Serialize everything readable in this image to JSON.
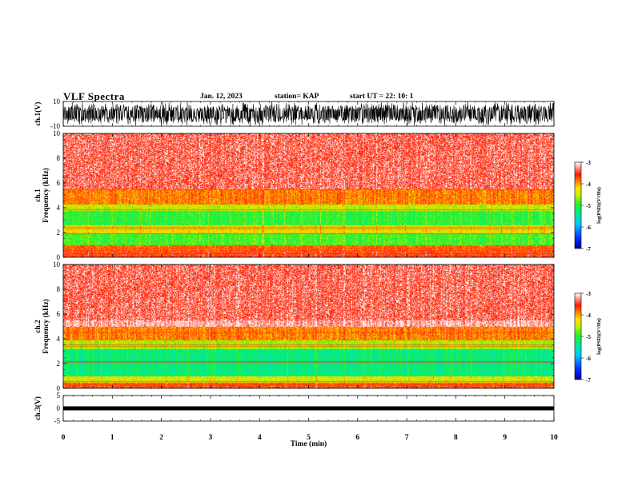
{
  "header": {
    "title": "VLF Spectra",
    "date": "Jan. 12, 2023",
    "station": "station= KAP",
    "start": "start  UT  =   22: 10: 1"
  },
  "colors": {
    "spectrogram_scale": [
      "#0000a0",
      "#0030ff",
      "#00b0ff",
      "#00e8a0",
      "#20f020",
      "#a0f000",
      "#f8f000",
      "#ff9000",
      "#ff1a00",
      "#ffffff"
    ],
    "trace": "#000000"
  },
  "chart_data": [
    {
      "type": "line",
      "panel": "ch1-waveform",
      "ylabel": "ch.1(V)",
      "ylim": [
        -10,
        10
      ],
      "yticks": [
        "10",
        "-10"
      ],
      "xlim": [
        0,
        10
      ],
      "description_series": "dense noise trace filling most of the range"
    },
    {
      "type": "heatmap",
      "panel": "ch1-spectrogram",
      "ylabel": "ch.1 Frequency (kHz)",
      "ylim": [
        0,
        10
      ],
      "yticks": [
        "0",
        "2",
        "4",
        "6",
        "8",
        "10"
      ],
      "xlim": [
        0,
        10
      ],
      "colorbar": {
        "label": "log(PSD)(V²/Hz)",
        "range": [
          -7,
          -3
        ],
        "ticks": [
          "-3",
          "-4",
          "-5",
          "-6",
          "-7"
        ]
      },
      "bands": [
        {
          "from_khz": 0,
          "to_khz": 0.5,
          "level": -3.6
        },
        {
          "from_khz": 0.5,
          "to_khz": 1.0,
          "level": -3.8
        },
        {
          "from_khz": 1.0,
          "to_khz": 2.0,
          "level": -4.9
        },
        {
          "from_khz": 2.0,
          "to_khz": 2.6,
          "level": -4.3
        },
        {
          "from_khz": 2.6,
          "to_khz": 3.8,
          "level": -5.0
        },
        {
          "from_khz": 3.8,
          "to_khz": 4.3,
          "level": -4.5
        },
        {
          "from_khz": 4.3,
          "to_khz": 5.5,
          "level": -3.9
        },
        {
          "from_khz": 5.5,
          "to_khz": 10,
          "level": -3.2
        }
      ]
    },
    {
      "type": "heatmap",
      "panel": "ch2-spectrogram",
      "ylabel": "ch.2 Frequency (kHz)",
      "ylim": [
        0,
        10
      ],
      "yticks": [
        "0",
        "2",
        "4",
        "6",
        "8",
        "10"
      ],
      "xlim": [
        0,
        10
      ],
      "colorbar": {
        "label": "log(PSD)(V²/Hz)",
        "range": [
          -7,
          -3
        ],
        "ticks": [
          "-3",
          "-4",
          "-5",
          "-6",
          "-7"
        ]
      },
      "bands": [
        {
          "from_khz": 0,
          "to_khz": 0.5,
          "level": -3.7
        },
        {
          "from_khz": 0.5,
          "to_khz": 1.0,
          "level": -4.4
        },
        {
          "from_khz": 1.0,
          "to_khz": 3.2,
          "level": -5.3
        },
        {
          "from_khz": 3.2,
          "to_khz": 3.9,
          "level": -4.6
        },
        {
          "from_khz": 3.9,
          "to_khz": 5.0,
          "level": -3.9
        },
        {
          "from_khz": 5.0,
          "to_khz": 10,
          "level": -3.2
        }
      ]
    },
    {
      "type": "line",
      "panel": "ch3-waveform",
      "ylabel": "ch.3(V)",
      "ylim": [
        -5,
        5
      ],
      "yticks": [
        "5",
        "0",
        "-5"
      ],
      "xlim": [
        0,
        10
      ],
      "level_v": 0,
      "description_series": "thin constant band near 0 V"
    }
  ],
  "xaxis": {
    "label": "Time (min)",
    "ticks": [
      "0",
      "1",
      "2",
      "3",
      "4",
      "5",
      "6",
      "7",
      "8",
      "9",
      "10"
    ],
    "range": [
      0,
      10
    ]
  }
}
